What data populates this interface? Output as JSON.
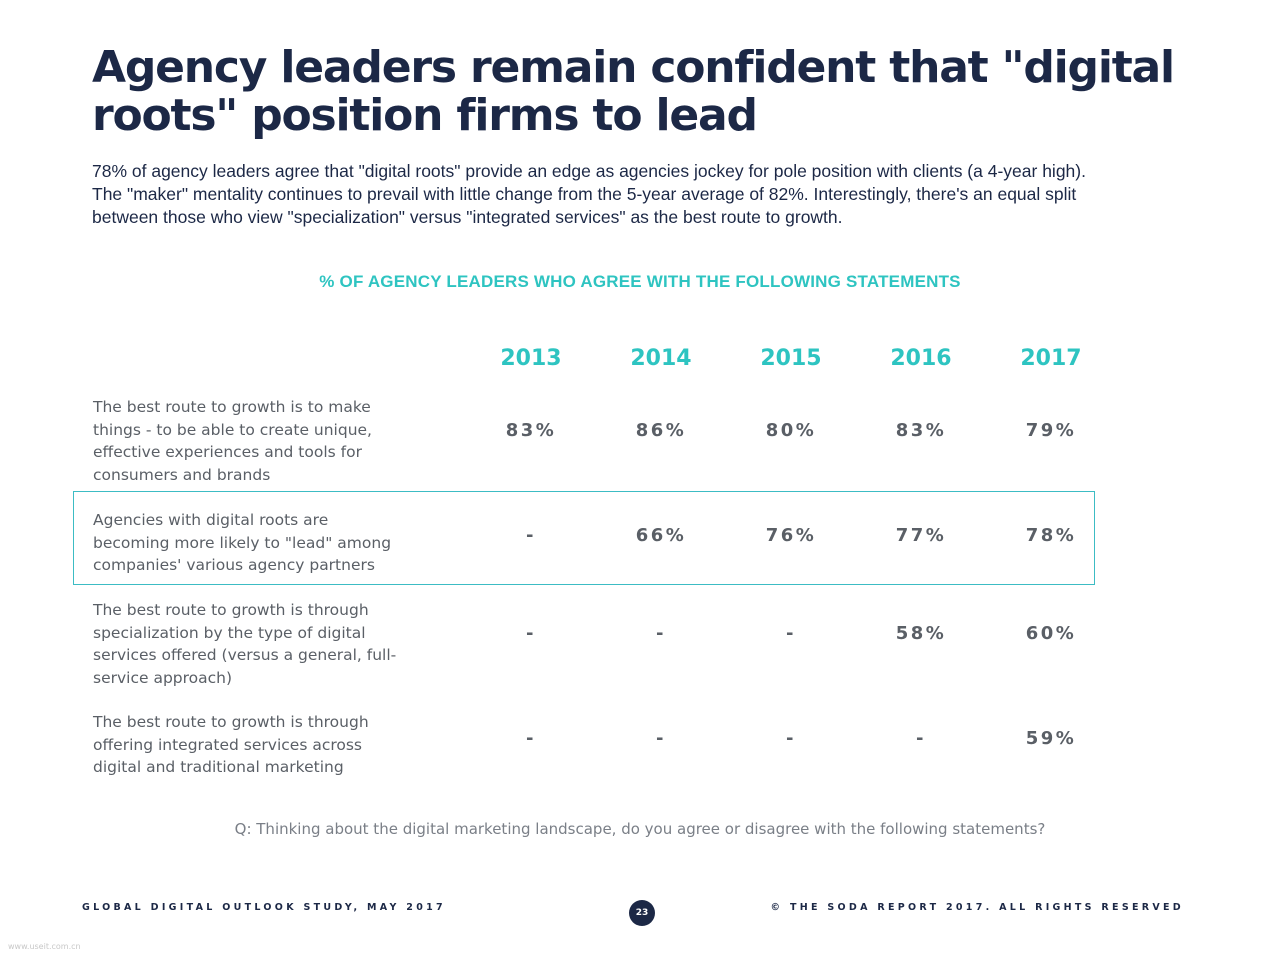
{
  "title": {
    "line1": "Agency leaders remain confident that \"digital",
    "line2": "roots\" position firms to lead"
  },
  "intro": {
    "line1": "78% of agency leaders agree that \"digital roots\" provide an edge as agencies jockey for pole position with clients (a 4-year high).",
    "line2": "The \"maker\" mentality continues to prevail with little change from the 5-year average of 82%. Interestingly, there's an equal split",
    "line3": "between those who view \"specialization\" versus \"integrated services\" as the best route to growth."
  },
  "table": {
    "heading": "% OF AGENCY LEADERS WHO AGREE WITH THE FOLLOWING STATEMENTS",
    "years": [
      "2013",
      "2014",
      "2015",
      "2016",
      "2017"
    ],
    "rows": [
      {
        "lines": [
          "The best route to growth is to make",
          "things - to be able to create unique,",
          "effective experiences and tools for",
          "consumers and brands"
        ],
        "values": [
          "83%",
          "86%",
          "80%",
          "83%",
          "79%"
        ]
      },
      {
        "lines": [
          "Agencies with digital roots are",
          "becoming more likely to \"lead\" among",
          "companies' various agency partners"
        ],
        "values": [
          "-",
          "66%",
          "76%",
          "77%",
          "78%"
        ]
      },
      {
        "lines": [
          "The best route to growth is through",
          "specialization by the type of digital",
          "services offered (versus a general, full-",
          "service approach)"
        ],
        "values": [
          "-",
          "-",
          "-",
          "58%",
          "60%"
        ]
      },
      {
        "lines": [
          "The best route to growth is through",
          "offering integrated services across",
          "digital and traditional marketing"
        ],
        "values": [
          "-",
          "-",
          "-",
          "-",
          "59%"
        ]
      }
    ]
  },
  "question": "Q: Thinking about the digital marketing landscape, do you agree or disagree with the following statements?",
  "footer": {
    "left": "GLOBAL DIGITAL OUTLOOK STUDY, MAY 2017",
    "page": "23",
    "right": "© THE SODA REPORT 2017. ALL RIGHTS RESERVED"
  },
  "watermark": "www.useit.com.cn"
}
